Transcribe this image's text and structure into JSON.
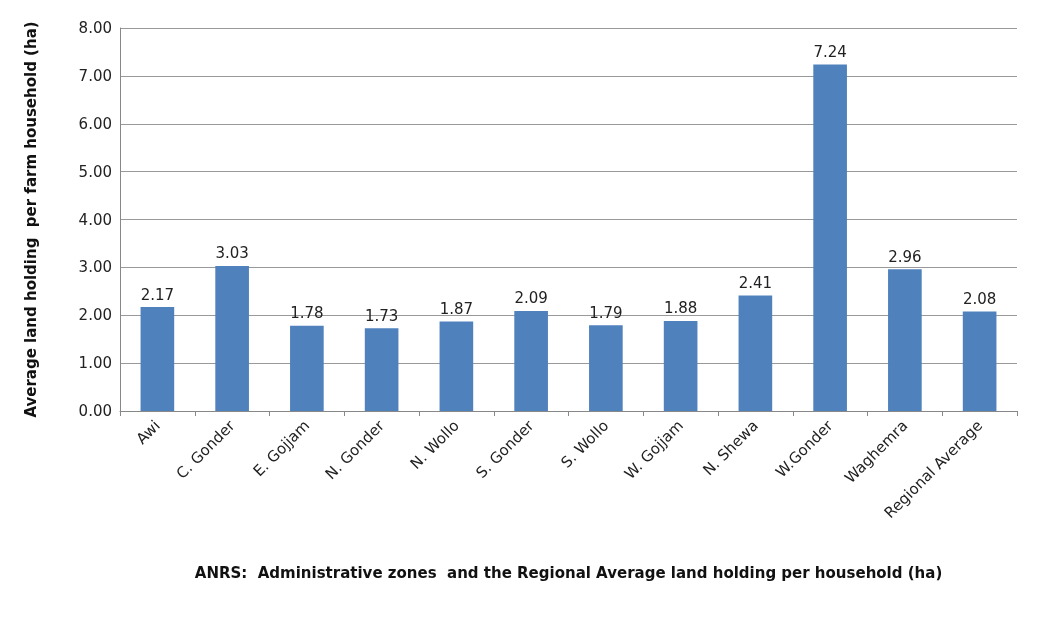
{
  "chart_data": {
    "type": "bar",
    "categories": [
      "Awi",
      "C. Gonder",
      "E. Gojjam",
      "N. Gonder",
      "N. Wollo",
      "S. Gonder",
      "S. Wollo",
      "W. Gojjam",
      "N. Shewa",
      "W.Gonder",
      "Waghemra",
      "Regional Average"
    ],
    "values": [
      2.17,
      3.03,
      1.78,
      1.73,
      1.87,
      2.09,
      1.79,
      1.88,
      2.41,
      7.24,
      2.96,
      2.08
    ],
    "color": "#4f81bd",
    "ylim": [
      0,
      8
    ],
    "yticks": [
      {
        "value": 0,
        "label": "0.00"
      },
      {
        "value": 1,
        "label": "1.00"
      },
      {
        "value": 2,
        "label": "2.00"
      },
      {
        "value": 3,
        "label": "3.00"
      },
      {
        "value": 4,
        "label": "4.00"
      },
      {
        "value": 5,
        "label": "5.00"
      },
      {
        "value": 6,
        "label": "6.00"
      },
      {
        "value": 7,
        "label": "7.00"
      },
      {
        "value": 8,
        "label": "8.00"
      }
    ],
    "ylabel": "Average land holding  per farm household (ha)",
    "xlabel": "ANRS:  Administrative zones  and the Regional Average land holding per household (ha)",
    "grid": "y",
    "data_labels": true
  }
}
